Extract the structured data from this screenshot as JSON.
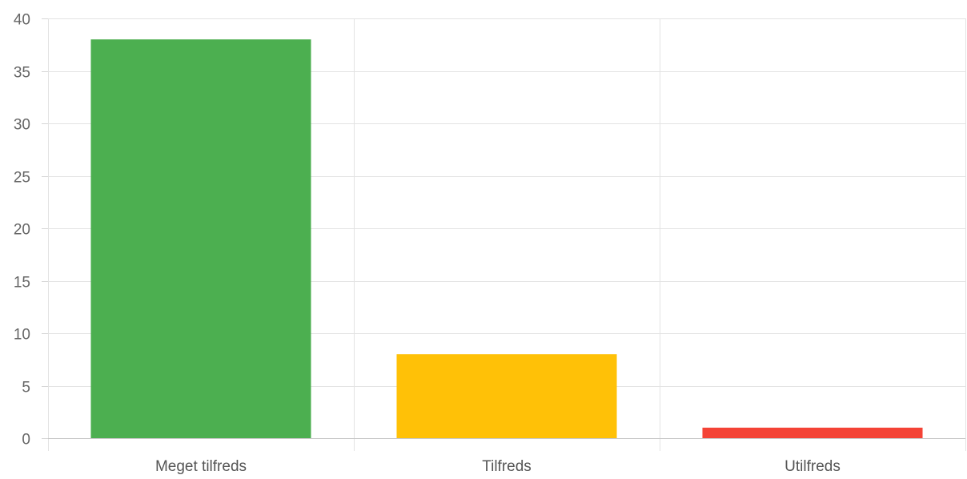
{
  "chart_data": {
    "type": "bar",
    "categories": [
      "Meget tilfreds",
      "Tilfreds",
      "Utilfreds"
    ],
    "values": [
      38,
      8,
      1
    ],
    "colors": [
      "#4caf50",
      "#ffc107",
      "#f44336"
    ],
    "ylim": [
      0,
      40
    ],
    "yticks": [
      0,
      5,
      10,
      15,
      20,
      25,
      30,
      35,
      40
    ],
    "ytick_labels": [
      "0",
      "5",
      "10",
      "15",
      "20",
      "25",
      "30",
      "35",
      "40"
    ],
    "grid": true,
    "legend": "none",
    "title": "",
    "xlabel": "",
    "ylabel": ""
  }
}
